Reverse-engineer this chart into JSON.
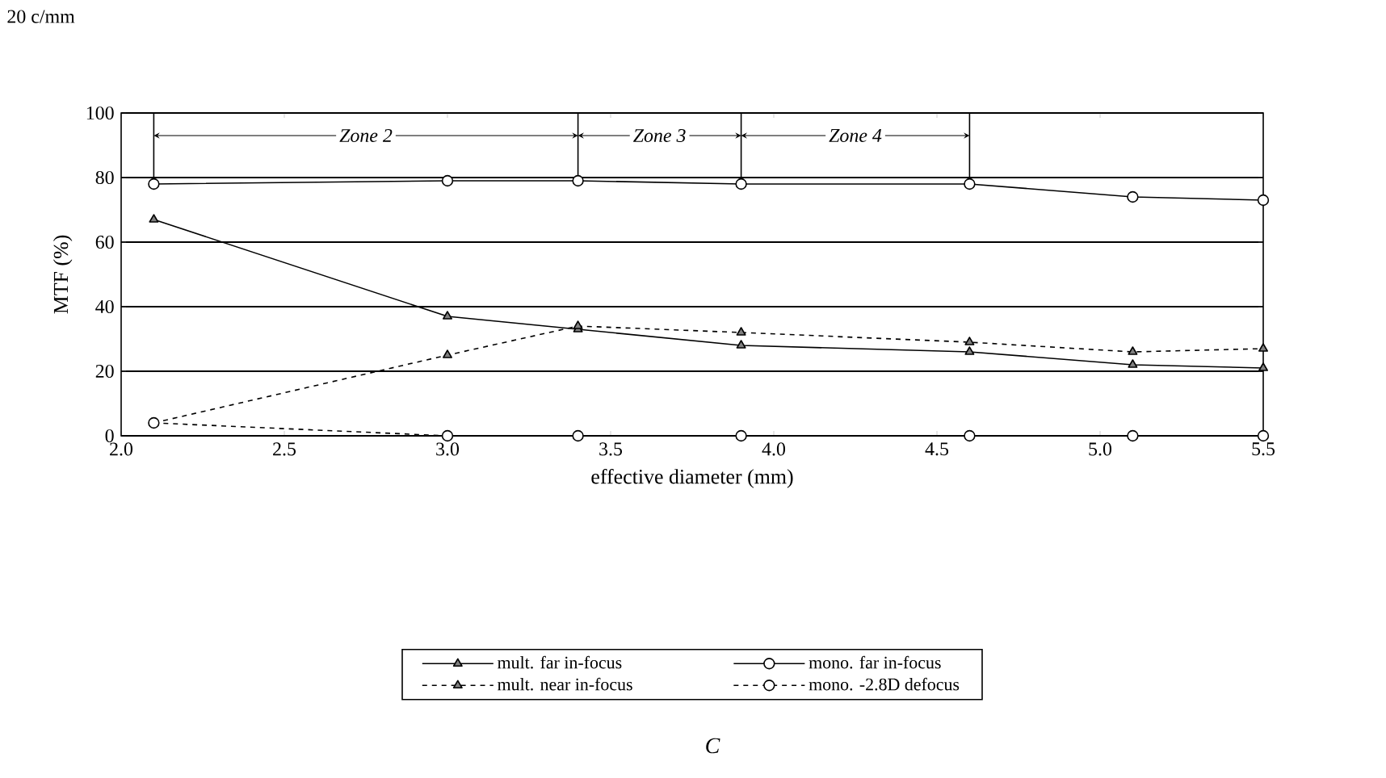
{
  "chart_data": {
    "type": "line",
    "title": "20 c/mm",
    "xlabel": "effective diameter (mm)",
    "ylabel": "MTF (%)",
    "annotations": [
      "C",
      {
        "text": "Zone 2",
        "x": 2.75,
        "y": 93
      },
      {
        "text": "Zone 3",
        "x": 3.65,
        "y": 93
      },
      {
        "text": "Zone 4",
        "x": 4.25,
        "y": 93
      }
    ],
    "x": [
      2.1,
      3.0,
      3.4,
      3.9,
      4.6,
      5.1,
      5.5
    ],
    "series": [
      {
        "name": "mult. far in-focus",
        "color": "#000000",
        "marker": "triangle",
        "line_style": "solid",
        "values": [
          67,
          37,
          33,
          28,
          26,
          22,
          21
        ]
      },
      {
        "name": "mono. far in-focus",
        "color": "#000000",
        "marker": "circle",
        "line_style": "solid",
        "values": [
          78,
          79,
          79,
          78,
          78,
          74,
          73
        ]
      },
      {
        "name": "mult. near in-focus",
        "color": "#000000",
        "marker": "triangle",
        "line_style": "dashed",
        "values": [
          4,
          25,
          34,
          32,
          29,
          26,
          27
        ]
      },
      {
        "name": "mono. -2.8D defocus",
        "color": "#000000",
        "marker": "circle",
        "line_style": "dashed",
        "values": [
          4,
          0,
          0,
          0,
          0,
          0,
          0
        ]
      }
    ],
    "ref_lines": [
      {
        "axis": "x",
        "value": 2.1
      },
      {
        "axis": "x",
        "value": 3.4
      },
      {
        "axis": "x",
        "value": 3.9
      },
      {
        "axis": "x",
        "value": 4.6
      }
    ],
    "xlim": [
      2.0,
      5.5
    ],
    "ylim": [
      0,
      100
    ],
    "xticks": [
      {
        "value": 2.0,
        "label": "2.0"
      },
      {
        "value": 2.5,
        "label": "2.5"
      },
      {
        "value": 3.0,
        "label": "3.0"
      },
      {
        "value": 3.5,
        "label": "3.5"
      },
      {
        "value": 4.0,
        "label": "4.0"
      },
      {
        "value": 4.5,
        "label": "4.5"
      },
      {
        "value": 5.0,
        "label": "5.0"
      },
      {
        "value": 5.5,
        "label": "5.5"
      }
    ],
    "yticks": [
      0,
      20,
      40,
      60,
      80,
      100
    ],
    "grid": "y",
    "legend": "bottom"
  }
}
